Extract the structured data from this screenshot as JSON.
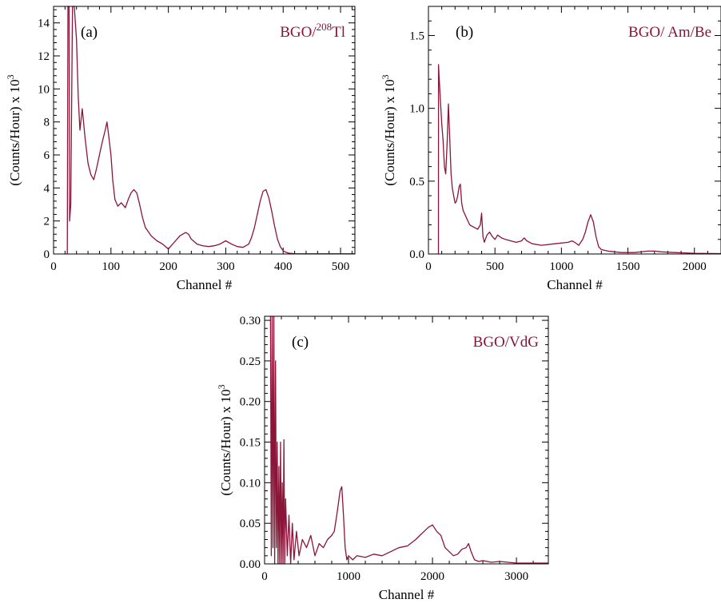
{
  "colors": {
    "series": "#8a1538",
    "axes": "#000000"
  },
  "chart_data": [
    {
      "type": "line",
      "panel_label": "(a)",
      "annotation": {
        "prefix": "BGO/",
        "superscript": "208",
        "suffix": "Tl"
      },
      "xlabel": "Channel #",
      "ylabel": "(Counts/Hour) x 10",
      "ylabel_exponent": "3",
      "xlim": [
        0,
        525
      ],
      "ylim": [
        0,
        15
      ],
      "xticks": [
        0,
        100,
        200,
        300,
        400,
        500
      ],
      "yticks": [
        0,
        2,
        4,
        6,
        8,
        10,
        12,
        14
      ],
      "ytick_labels": [
        "0",
        "2",
        "4",
        "6",
        "8",
        "10",
        "12",
        "14"
      ],
      "series": [
        {
          "x": [
            24,
            25,
            27,
            28,
            30,
            33,
            36,
            40,
            43,
            46,
            50,
            55,
            60,
            65,
            70,
            75,
            80,
            85,
            90,
            93,
            96,
            100,
            103,
            107,
            112,
            118,
            125,
            130,
            135,
            140,
            145,
            150,
            155,
            160,
            170,
            180,
            190,
            200,
            205,
            210,
            215,
            220,
            225,
            230,
            235,
            240,
            250,
            260,
            270,
            280,
            290,
            300,
            310,
            320,
            330,
            340,
            345,
            350,
            355,
            360,
            365,
            370,
            375,
            380,
            385,
            390,
            395,
            400,
            405,
            410,
            420,
            440,
            460,
            480,
            500,
            525
          ],
          "y": [
            0,
            15,
            15,
            2,
            3,
            15,
            15,
            13,
            9.5,
            7.5,
            8.8,
            7,
            5.5,
            4.8,
            4.5,
            5.2,
            6,
            6.8,
            7.5,
            8,
            7.2,
            6,
            4.5,
            3.3,
            2.9,
            3.1,
            2.8,
            3.3,
            3.7,
            3.9,
            3.7,
            3.0,
            2.2,
            1.6,
            1.1,
            0.8,
            0.6,
            0.3,
            0.5,
            0.7,
            0.9,
            1.1,
            1.2,
            1.3,
            1.2,
            0.9,
            0.6,
            0.5,
            0.45,
            0.5,
            0.6,
            0.8,
            0.6,
            0.45,
            0.4,
            0.6,
            1.0,
            1.6,
            2.4,
            3.2,
            3.8,
            3.9,
            3.4,
            2.6,
            1.7,
            0.9,
            0.45,
            0.2,
            0.1,
            0.05,
            0.02,
            0.01,
            0.01,
            0.01,
            0.01,
            0.01
          ]
        }
      ]
    },
    {
      "type": "line",
      "panel_label": "(b)",
      "annotation": {
        "prefix": "BGO/ Am/Be",
        "superscript": "",
        "suffix": ""
      },
      "xlabel": "Channel #",
      "ylabel": "(Counts/Hour) x 10",
      "ylabel_exponent": "3",
      "xlim": [
        0,
        2200
      ],
      "ylim": [
        0,
        1.7
      ],
      "xticks": [
        0,
        500,
        1000,
        1500,
        2000
      ],
      "yticks": [
        0,
        0.5,
        1.0,
        1.5
      ],
      "ytick_labels": [
        "0.0",
        "0.5",
        "1.0",
        "1.5"
      ],
      "series": [
        {
          "x": [
            75,
            76,
            80,
            90,
            100,
            110,
            120,
            130,
            140,
            150,
            160,
            170,
            180,
            190,
            200,
            210,
            220,
            230,
            240,
            250,
            260,
            270,
            290,
            310,
            330,
            350,
            370,
            390,
            400,
            410,
            420,
            440,
            460,
            480,
            500,
            520,
            550,
            580,
            620,
            660,
            700,
            720,
            740,
            780,
            850,
            950,
            1050,
            1080,
            1100,
            1130,
            1160,
            1180,
            1200,
            1220,
            1240,
            1260,
            1280,
            1300,
            1350,
            1450,
            1550,
            1650,
            1700,
            1750,
            1850,
            2000,
            2200
          ],
          "y": [
            0,
            1.3,
            1.22,
            1.05,
            0.9,
            0.78,
            0.6,
            0.55,
            0.75,
            1.03,
            0.8,
            0.55,
            0.45,
            0.4,
            0.35,
            0.36,
            0.4,
            0.46,
            0.48,
            0.35,
            0.3,
            0.28,
            0.24,
            0.2,
            0.19,
            0.18,
            0.17,
            0.2,
            0.28,
            0.12,
            0.08,
            0.13,
            0.15,
            0.12,
            0.1,
            0.13,
            0.11,
            0.1,
            0.09,
            0.08,
            0.09,
            0.11,
            0.09,
            0.07,
            0.06,
            0.07,
            0.08,
            0.09,
            0.08,
            0.06,
            0.1,
            0.15,
            0.22,
            0.27,
            0.22,
            0.12,
            0.05,
            0.03,
            0.02,
            0.01,
            0.01,
            0.02,
            0.02,
            0.015,
            0.01,
            0.005,
            0.003
          ]
        }
      ]
    },
    {
      "type": "line",
      "panel_label": "(c)",
      "annotation": {
        "prefix": "BGO/VdG",
        "superscript": "",
        "suffix": ""
      },
      "xlabel": "Channel #",
      "ylabel": "(Counts/Hour) x 10",
      "ylabel_exponent": "3",
      "xlim": [
        0,
        3380
      ],
      "ylim": [
        0,
        0.305
      ],
      "xticks": [
        0,
        1000,
        2000,
        3000
      ],
      "yticks": [
        0,
        0.05,
        0.1,
        0.15,
        0.2,
        0.25,
        0.3
      ],
      "ytick_labels": [
        "0.00",
        "0.05",
        "0.10",
        "0.15",
        "0.20",
        "0.25",
        "0.30"
      ],
      "series": [
        {
          "x": [
            70,
            80,
            90,
            100,
            110,
            120,
            130,
            140,
            150,
            160,
            170,
            180,
            190,
            200,
            210,
            220,
            230,
            240,
            250,
            270,
            290,
            310,
            330,
            350,
            380,
            410,
            450,
            500,
            550,
            600,
            650,
            700,
            750,
            800,
            830,
            860,
            880,
            900,
            920,
            940,
            960,
            980,
            1000,
            1050,
            1100,
            1200,
            1300,
            1400,
            1500,
            1600,
            1700,
            1800,
            1850,
            1900,
            1950,
            2000,
            2050,
            2100,
            2150,
            2200,
            2250,
            2300,
            2350,
            2400,
            2430,
            2460,
            2500,
            2550,
            2600,
            2700,
            2800,
            2900,
            3000,
            3100,
            3200,
            3300,
            3380
          ],
          "y": [
            0.305,
            0.01,
            0.305,
            0.02,
            0.305,
            0.0,
            0.25,
            0.02,
            0.15,
            0.0,
            0.12,
            0.0,
            0.15,
            0.0,
            0.1,
            0.0,
            0.153,
            0.0,
            0.08,
            0.01,
            0.06,
            0.0,
            0.05,
            0.005,
            0.04,
            0.01,
            0.03,
            0.02,
            0.035,
            0.01,
            0.025,
            0.02,
            0.03,
            0.035,
            0.04,
            0.06,
            0.075,
            0.09,
            0.095,
            0.06,
            0.02,
            0.005,
            0.01,
            0.005,
            0.01,
            0.008,
            0.012,
            0.01,
            0.015,
            0.02,
            0.022,
            0.03,
            0.035,
            0.04,
            0.045,
            0.048,
            0.04,
            0.035,
            0.02,
            0.015,
            0.01,
            0.012,
            0.018,
            0.02,
            0.025,
            0.015,
            0.005,
            0.003,
            0.004,
            0.002,
            0.003,
            0.002,
            0.001,
            0.001,
            0.001,
            0.001,
            0.001
          ]
        }
      ]
    }
  ]
}
